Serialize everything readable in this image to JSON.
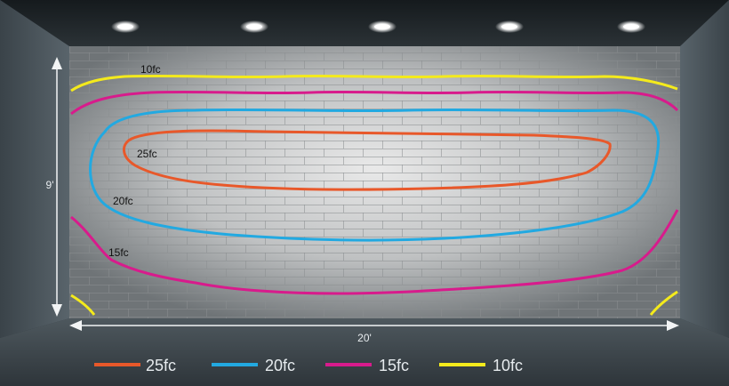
{
  "levels": [
    {
      "label": "25fc",
      "color": "#e8582a"
    },
    {
      "label": "20fc",
      "color": "#22a9e1"
    },
    {
      "label": "15fc",
      "color": "#d81b8c"
    },
    {
      "label": "10fc",
      "color": "#f4ea1c"
    }
  ],
  "contour_labels": {
    "c10": "10fc",
    "c25": "25fc",
    "c20": "20fc",
    "c15": "15fc"
  },
  "dimensions": {
    "height": "9'",
    "width": "20'"
  },
  "ceiling_lights": 5
}
